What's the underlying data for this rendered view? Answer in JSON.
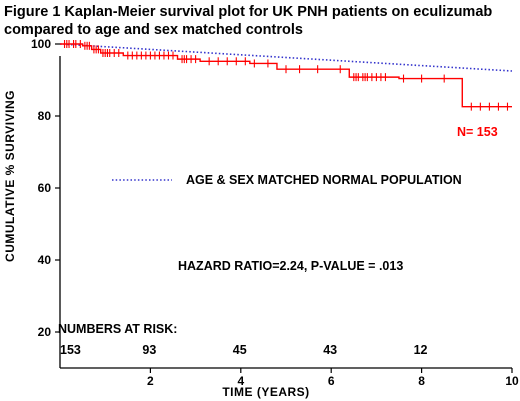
{
  "chart_data": {
    "type": "line",
    "title_line1": "Figure 1 Kaplan-Meier survival plot for UK PNH patients on eculizumab",
    "title_line2": "compared to age and sex matched controls",
    "xlabel": "TIME (YEARS)",
    "ylabel": "CUMULATIVE % SURVIVING",
    "xlim": [
      0,
      10
    ],
    "ylim": [
      10,
      100
    ],
    "x_ticks": [
      "2",
      "4",
      "6",
      "8",
      "10"
    ],
    "y_ticks": [
      "20",
      "40",
      "60",
      "80",
      "100"
    ],
    "grid": false,
    "series": [
      {
        "name": "N= 153",
        "color": "#ff0000",
        "style": "step",
        "x": [
          0,
          0.5,
          0.7,
          0.9,
          1.4,
          2.6,
          3.1,
          4.2,
          4.8,
          6.4,
          7.5,
          8.9,
          10
        ],
        "y": [
          100,
          99.5,
          98.5,
          97.5,
          96.8,
          95.8,
          95.2,
          94.6,
          93.0,
          90.8,
          90.4,
          82.6,
          82.6
        ],
        "censor_x": [
          0.1,
          0.15,
          0.2,
          0.3,
          0.35,
          0.45,
          0.55,
          0.6,
          0.65,
          0.75,
          0.8,
          0.85,
          0.95,
          1.0,
          1.05,
          1.1,
          1.2,
          1.3,
          1.5,
          1.6,
          1.7,
          1.8,
          1.9,
          2.0,
          2.1,
          2.2,
          2.3,
          2.4,
          2.5,
          2.7,
          2.75,
          2.8,
          2.9,
          3.0,
          3.3,
          3.5,
          3.7,
          3.9,
          4.1,
          4.3,
          4.6,
          5.0,
          5.3,
          5.7,
          6.2,
          6.5,
          6.55,
          6.6,
          6.7,
          6.75,
          6.8,
          6.9,
          7.0,
          7.1,
          7.2,
          7.6,
          8.0,
          8.5,
          9.1,
          9.3,
          9.5,
          9.7,
          9.9
        ]
      },
      {
        "name": "AGE & SEX MATCHED NORMAL POPULATION",
        "color": "#3333cc",
        "style": "dotted",
        "x": [
          0,
          10
        ],
        "y": [
          100,
          92.5
        ]
      }
    ],
    "annotations": {
      "n_label": "N= 153",
      "legend_text": "AGE & SEX MATCHED NORMAL POPULATION",
      "hazard_text": "HAZARD RATIO=2.24, P-VALUE = .013",
      "numbers_at_risk_title": "NUMBERS AT RISK:",
      "numbers_at_risk": [
        {
          "x": 0,
          "n": "153"
        },
        {
          "x": 2,
          "n": "93"
        },
        {
          "x": 4,
          "n": "45"
        },
        {
          "x": 6,
          "n": "43"
        },
        {
          "x": 8,
          "n": "12"
        }
      ]
    }
  }
}
